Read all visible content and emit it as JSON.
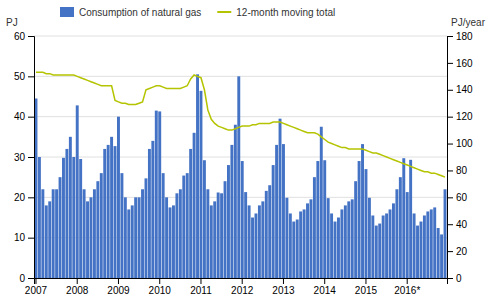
{
  "chart_data": {
    "type": "bar",
    "categories": [
      "2007",
      null,
      null,
      null,
      null,
      null,
      null,
      null,
      null,
      null,
      null,
      null,
      "2008",
      null,
      null,
      null,
      null,
      null,
      null,
      null,
      null,
      null,
      null,
      null,
      "2009",
      null,
      null,
      null,
      null,
      null,
      null,
      null,
      null,
      null,
      null,
      null,
      "2010",
      null,
      null,
      null,
      null,
      null,
      null,
      null,
      null,
      null,
      null,
      null,
      "2011",
      null,
      null,
      null,
      null,
      null,
      null,
      null,
      null,
      null,
      null,
      null,
      "2012",
      null,
      null,
      null,
      null,
      null,
      null,
      null,
      null,
      null,
      null,
      null,
      "2013",
      null,
      null,
      null,
      null,
      null,
      null,
      null,
      null,
      null,
      null,
      null,
      "2014",
      null,
      null,
      null,
      null,
      null,
      null,
      null,
      null,
      null,
      null,
      null,
      "2015",
      null,
      null,
      null,
      null,
      null,
      null,
      null,
      null,
      null,
      null,
      null,
      "2016*",
      null,
      null,
      null,
      null,
      null,
      null,
      null,
      null,
      null,
      null,
      null
    ],
    "series": [
      {
        "name": "Consumption of natural gas",
        "type": "bar",
        "color": "#4472c4",
        "values": [
          44.5,
          30.0,
          22.0,
          18.0,
          19.0,
          22.0,
          22.0,
          25.0,
          29.8,
          32.0,
          35.0,
          30.0,
          42.8,
          29.5,
          22.0,
          19.0,
          20.0,
          22.0,
          24.0,
          26.0,
          32.0,
          33.0,
          35.0,
          32.7,
          40.0,
          26.0,
          20.0,
          17.0,
          18.0,
          20.0,
          20.0,
          22.0,
          24.7,
          32.0,
          34.0,
          41.5,
          41.3,
          26.0,
          20.0,
          17.5,
          18.0,
          21.0,
          22.0,
          25.4,
          26.0,
          32.0,
          36.0,
          50.5,
          46.4,
          29.2,
          22.0,
          18.0,
          19.0,
          21.2,
          21.0,
          24.0,
          28.0,
          33.0,
          38.0,
          50.0,
          29.0,
          21.3,
          18.0,
          15.0,
          16.0,
          18.0,
          19.0,
          21.6,
          23.0,
          28.0,
          33.0,
          39.5,
          33.2,
          19.9,
          16.0,
          14.0,
          14.5,
          16.5,
          17.0,
          18.5,
          19.5,
          25.0,
          29.0,
          37.5,
          29.2,
          19.8,
          16.0,
          14.0,
          15.0,
          17.0,
          18.0,
          19.0,
          19.5,
          24.0,
          29.0,
          33.2,
          27.0,
          19.9,
          15.5,
          13.0,
          13.5,
          15.5,
          16.0,
          17.0,
          18.5,
          22.0,
          25.0,
          29.7,
          21.3,
          29.3,
          16.0,
          13.0,
          14.0,
          15.5,
          16.5,
          17.0,
          17.5,
          12.4,
          10.8,
          22.0
        ]
      },
      {
        "name": "12-month moving total",
        "type": "line",
        "color": "#b5c400",
        "axis": "y2",
        "values": [
          153,
          153,
          153,
          152,
          152,
          151,
          151,
          151,
          151,
          151,
          151,
          151,
          150,
          149,
          148,
          147,
          146,
          145,
          144,
          143,
          143,
          143,
          143,
          132,
          131,
          130,
          130,
          129,
          129,
          129,
          130,
          131,
          140,
          141,
          142,
          143,
          143,
          142,
          141,
          141,
          141,
          141,
          141,
          142,
          143,
          148,
          151,
          150,
          149,
          140,
          125,
          118,
          115,
          113,
          112,
          111,
          110,
          110,
          111,
          112,
          113,
          113,
          113,
          114,
          114,
          115,
          115,
          115,
          115,
          116,
          116,
          116,
          115,
          114,
          113,
          112,
          111,
          110,
          109,
          108,
          108,
          108,
          107,
          105,
          103,
          101,
          100,
          99,
          98,
          97,
          97,
          96,
          96,
          96,
          96,
          96,
          95,
          94,
          93,
          93,
          92,
          91,
          90,
          89,
          88,
          87,
          86,
          85,
          84,
          83,
          82,
          81,
          80,
          79,
          79,
          78,
          78,
          77,
          76,
          75
        ]
      }
    ],
    "ylabel": "PJ",
    "y2label": "PJ/year",
    "ylim": [
      0,
      60
    ],
    "yticks": [
      0,
      10,
      20,
      30,
      40,
      50,
      60
    ],
    "y2lim": [
      0,
      180
    ],
    "y2ticks": [
      0,
      20,
      40,
      60,
      80,
      100,
      120,
      140,
      160,
      180
    ],
    "grid": true,
    "legend": "upper left"
  }
}
